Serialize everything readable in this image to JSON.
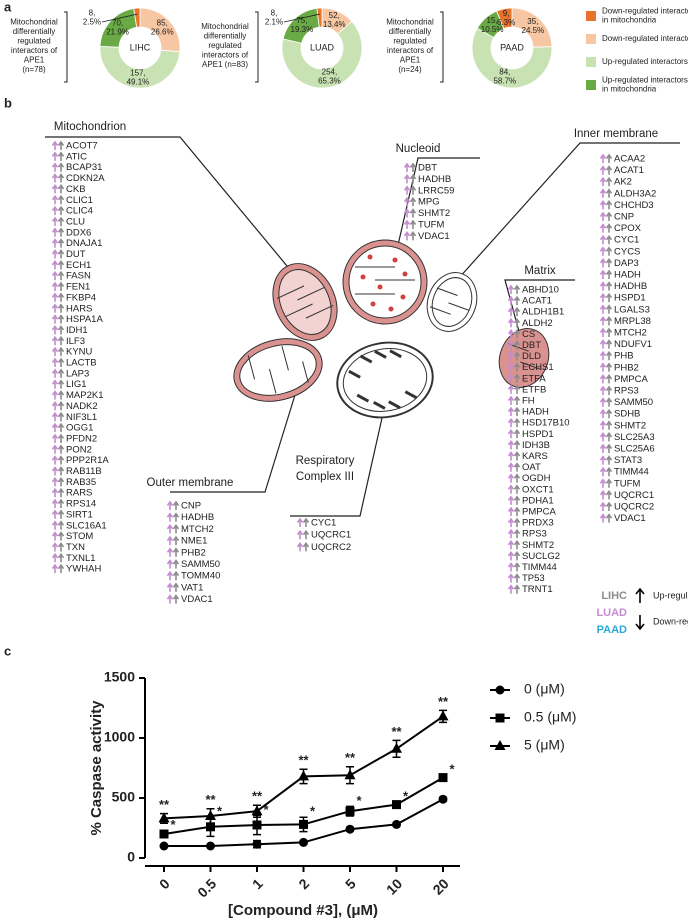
{
  "panel_labels": [
    "a",
    "b",
    "c"
  ],
  "donut_legend": {
    "labels": [
      "Down-regulated interactors\nin mitochondria",
      "Down-regulated interactors",
      "Up-regulated interactors",
      "Up-regulated interactors\nin mitochondria"
    ],
    "colors": [
      "#e8732a",
      "#f7c6a3",
      "#c9e2b3",
      "#6aaa45"
    ]
  },
  "chart_data": [
    {
      "type": "pie",
      "side_label": "Mitochondrial\ndifferentially\nregulated\ninteractors of\nAPE1\n(n=78)",
      "center_label": "LIHC",
      "values": [
        8,
        85,
        157,
        70
      ],
      "value_labels": [
        "8,\n2.5%",
        "85,\n26.6%",
        "157,\n49.1%",
        "70,\n21.9%"
      ]
    },
    {
      "type": "pie",
      "side_label": "Mitochondrial\ndifferentially\nregulated\ninteractors of\nAPE1 (n=83)",
      "center_label": "LUAD",
      "values": [
        8,
        52,
        254,
        75
      ],
      "value_labels": [
        "8,\n2.1%",
        "52,\n13.4%",
        "254,\n65.3%",
        "75,\n19.3%"
      ]
    },
    {
      "type": "pie",
      "side_label": "Mitochondrial\ndifferentially\nregulated\ninteractors of\nAPE1\n(n=24)",
      "center_label": "PAAD",
      "values": [
        9,
        35,
        84,
        15
      ],
      "value_labels": [
        "9,\n6.3%",
        "35,\n24.5%",
        "84,\n58.7%",
        "15,\n10.5%"
      ]
    },
    {
      "type": "line",
      "y_label": "% Caspase activity",
      "x_label": "[Compound #3], (μM)",
      "categories": [
        "0",
        "0.5",
        "1",
        "2",
        "5",
        "10",
        "20"
      ],
      "ylim": [
        0,
        1500
      ],
      "yticks": [
        0,
        500,
        1000,
        1500
      ],
      "legend": "right",
      "series": [
        {
          "name": "0 (μM)",
          "color": "#000000",
          "marker": "circle",
          "values": [
            100,
            100,
            115,
            130,
            240,
            280,
            490
          ],
          "errors": [
            10,
            10,
            30,
            15,
            15,
            15,
            15
          ]
        },
        {
          "name": "0.5 (μM)",
          "color": "#000000",
          "marker": "square",
          "values": [
            200,
            260,
            275,
            280,
            390,
            445,
            670
          ],
          "errors": [
            30,
            80,
            80,
            60,
            40,
            20,
            20
          ],
          "significance": [
            "*",
            "*",
            "*",
            "*",
            "*",
            "*",
            "*"
          ]
        },
        {
          "name": "5 (μM)",
          "color": "#000000",
          "marker": "triangle",
          "values": [
            330,
            350,
            390,
            680,
            690,
            910,
            1180
          ],
          "errors": [
            40,
            60,
            50,
            60,
            70,
            70,
            50
          ],
          "significance": [
            "**",
            "**",
            "**",
            "**",
            "**",
            "**",
            "**"
          ]
        }
      ]
    }
  ],
  "diagram": {
    "groups": [
      {
        "title": "Mitochondrion",
        "genes": [
          "ACOT7",
          "ATIC",
          "BCAP31",
          "CDKN2A",
          "CKB",
          "CLIC1",
          "CLIC4",
          "CLU",
          "DDX6",
          "DNAJA1",
          "DUT",
          "ECH1",
          "FASN",
          "FEN1",
          "FKBP4",
          "HARS",
          "HSPA1A",
          "IDH1",
          "ILF3",
          "KYNU",
          "LACTB",
          "LAP3",
          "LIG1",
          "MAP2K1",
          "NADK2",
          "NIF3L1",
          "OGG1",
          "PFDN2",
          "PON2",
          "PPP2R1A",
          "RAB11B",
          "RAB35",
          "RARS",
          "RPS14",
          "SIRT1",
          "SLC16A1",
          "STOM",
          "TXN",
          "TXNL1",
          "YWHAH"
        ]
      },
      {
        "title": "Nucleoid",
        "genes": [
          "DBT",
          "HADHB",
          "LRRC59",
          "MPG",
          "SHMT2",
          "TUFM",
          "VDAC1"
        ]
      },
      {
        "title": "Inner membrane",
        "genes": [
          "ACAA2",
          "ACAT1",
          "AK2",
          "ALDH3A2",
          "CHCHD3",
          "CNP",
          "CPOX",
          "CYC1",
          "CYCS",
          "DAP3",
          "HADH",
          "HADHB",
          "HSPD1",
          "LGALS3",
          "MRPL38",
          "MTCH2",
          "NDUFV1",
          "PHB",
          "PHB2",
          "PMPCA",
          "RPS3",
          "SAMM50",
          "SDHB",
          "SHMT2",
          "SLC25A3",
          "SLC25A6",
          "STAT3",
          "TIMM44",
          "TUFM",
          "UQCRC1",
          "UQCRC2",
          "VDAC1"
        ]
      },
      {
        "title": "Matrix",
        "genes": [
          "ABHD10",
          "ACAT1",
          "ALDH1B1",
          "ALDH2",
          "CS",
          "DBT",
          "DLD",
          "ECHS1",
          "ETFA",
          "ETFB",
          "FH",
          "HADH",
          "HSD17B10",
          "HSPD1",
          "IDH3B",
          "KARS",
          "OAT",
          "OGDH",
          "OXCT1",
          "PDHA1",
          "PMPCA",
          "PRDX3",
          "RPS3",
          "SHMT2",
          "SUCLG2",
          "TIMM44",
          "TP53",
          "TRNT1"
        ]
      },
      {
        "title": "Outer membrane",
        "genes": [
          "CNP",
          "HADHB",
          "MTCH2",
          "NME1",
          "PHB2",
          "SAMM50",
          "TOMM40",
          "VAT1",
          "VDAC1"
        ]
      },
      {
        "title": "Respiratory\nComplex III",
        "genes": [
          "CYC1",
          "UQCRC1",
          "UQCRC2"
        ]
      }
    ],
    "key": {
      "datasets": [
        {
          "label": "LIHC",
          "color": "#8c8c8c"
        },
        {
          "label": "LUAD",
          "color": "#c58bd0"
        },
        {
          "label": "PAAD",
          "color": "#2ea8d8"
        }
      ],
      "up": "Up-regulation",
      "down": "Down-regulation"
    }
  }
}
